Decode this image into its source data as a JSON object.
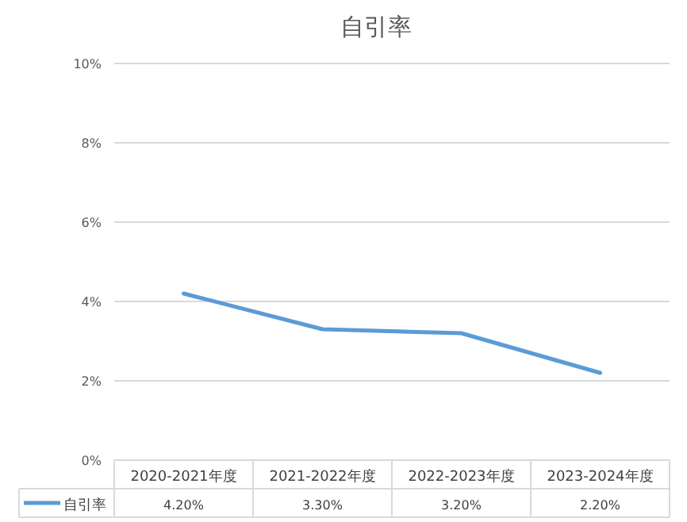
{
  "chart_data": {
    "type": "line",
    "title": "自引率",
    "categories": [
      "2020-2021年度",
      "2021-2022年度",
      "2022-2023年度",
      "2023-2024年度"
    ],
    "series": [
      {
        "name": "自引率",
        "color": "#5b9bd5",
        "values": [
          4.2,
          3.3,
          3.2,
          2.2
        ],
        "value_labels": [
          "4.20%",
          "3.30%",
          "3.20%",
          "2.20%"
        ]
      }
    ],
    "ylim": [
      0,
      10
    ],
    "yticks": [
      {
        "value": 0,
        "label": "0%"
      },
      {
        "value": 2,
        "label": "2%"
      },
      {
        "value": 4,
        "label": "4%"
      },
      {
        "value": 6,
        "label": "6%"
      },
      {
        "value": 8,
        "label": "8%"
      },
      {
        "value": 10,
        "label": "10%"
      }
    ],
    "grid": "y",
    "legend": "bottom",
    "marker": "none",
    "line_style": "solid"
  }
}
